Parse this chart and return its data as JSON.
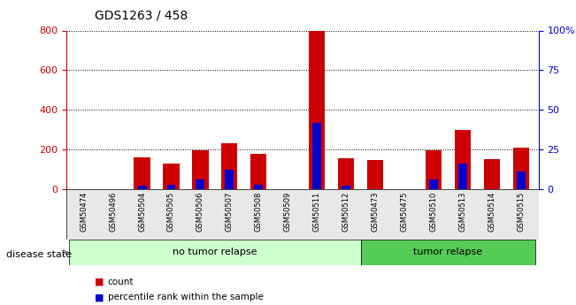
{
  "title": "GDS1263 / 458",
  "samples": [
    "GSM50474",
    "GSM50496",
    "GSM50504",
    "GSM50505",
    "GSM50506",
    "GSM50507",
    "GSM50508",
    "GSM50509",
    "GSM50511",
    "GSM50512",
    "GSM50473",
    "GSM50475",
    "GSM50510",
    "GSM50513",
    "GSM50514",
    "GSM50515"
  ],
  "count_values": [
    0,
    0,
    160,
    130,
    195,
    230,
    180,
    0,
    800,
    155,
    145,
    0,
    195,
    300,
    150,
    210
  ],
  "percentile_values_pct": [
    0,
    0,
    2,
    3,
    6,
    12,
    3,
    0,
    42,
    2,
    0,
    0,
    6,
    16,
    0,
    11
  ],
  "no_tumor_relapse_count": 10,
  "tumor_relapse_count": 6,
  "left_y_color": "#cc0000",
  "right_y_color": "#0000cc",
  "bar_color_count": "#cc0000",
  "bar_color_percentile": "#0000cc",
  "left_ylim": [
    0,
    800
  ],
  "right_ylim": [
    0,
    100
  ],
  "left_yticks": [
    0,
    200,
    400,
    600,
    800
  ],
  "right_yticks": [
    0,
    25,
    50,
    75,
    100
  ],
  "right_yticklabels": [
    "0",
    "25",
    "50",
    "75",
    "100%"
  ],
  "no_relapse_color": "#ccffcc",
  "relapse_color": "#55cc55",
  "disease_state_label": "disease state",
  "no_relapse_label": "no tumor relapse",
  "relapse_label": "tumor relapse",
  "count_legend": "count",
  "percentile_legend": "percentile rank within the sample"
}
